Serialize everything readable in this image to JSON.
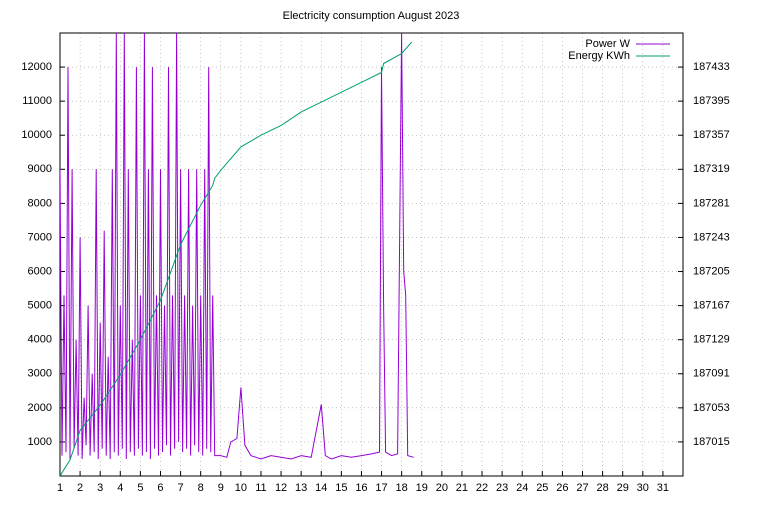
{
  "chart_data": {
    "type": "line",
    "title": "Electricity consumption August 2023",
    "xlim": [
      1,
      32
    ],
    "xticks": [
      1,
      2,
      3,
      4,
      5,
      6,
      7,
      8,
      9,
      10,
      11,
      12,
      13,
      14,
      15,
      16,
      17,
      18,
      19,
      20,
      21,
      22,
      23,
      24,
      25,
      26,
      27,
      28,
      29,
      30,
      31
    ],
    "ylim": [
      0,
      13000
    ],
    "yticks": [
      1000,
      2000,
      3000,
      4000,
      5000,
      6000,
      7000,
      8000,
      9000,
      10000,
      11000,
      12000
    ],
    "y2lim": [
      186977,
      187471
    ],
    "y2ticks": [
      187015,
      187053,
      187091,
      187129,
      187167,
      187205,
      187243,
      187281,
      187319,
      187357,
      187395,
      187433
    ],
    "grid": true,
    "legend": "top-right",
    "series": [
      {
        "name": "Power W",
        "color": "#9400d3",
        "x": [
          1.0,
          1.1,
          1.2,
          1.3,
          1.4,
          1.5,
          1.6,
          1.7,
          1.8,
          1.9,
          2.0,
          2.1,
          2.2,
          2.3,
          2.4,
          2.5,
          2.6,
          2.7,
          2.8,
          2.9,
          3.0,
          3.1,
          3.2,
          3.3,
          3.4,
          3.5,
          3.6,
          3.7,
          3.8,
          3.9,
          4.0,
          4.1,
          4.2,
          4.3,
          4.4,
          4.5,
          4.6,
          4.7,
          4.8,
          4.9,
          5.0,
          5.1,
          5.2,
          5.3,
          5.4,
          5.5,
          5.6,
          5.7,
          5.8,
          5.9,
          6.0,
          6.1,
          6.2,
          6.3,
          6.4,
          6.5,
          6.6,
          6.7,
          6.8,
          6.9,
          7.0,
          7.1,
          7.2,
          7.3,
          7.4,
          7.5,
          7.6,
          7.7,
          7.8,
          7.9,
          8.0,
          8.1,
          8.2,
          8.3,
          8.4,
          8.5,
          8.6,
          8.7,
          9.0,
          9.3,
          9.5,
          9.8,
          10.0,
          10.2,
          10.5,
          11.0,
          11.5,
          12.0,
          12.5,
          13.0,
          13.5,
          14.0,
          14.2,
          14.5,
          15.0,
          15.5,
          16.0,
          16.5,
          16.9,
          17.0,
          17.1,
          17.2,
          17.5,
          17.8,
          18.0,
          18.1,
          18.2,
          18.3,
          18.6
        ],
        "values": [
          9000,
          600,
          5300,
          700,
          12000,
          500,
          9000,
          800,
          4000,
          600,
          7000,
          500,
          2300,
          900,
          5000,
          600,
          3000,
          700,
          9000,
          500,
          4500,
          800,
          7200,
          600,
          3500,
          500,
          9000,
          700,
          13000,
          600,
          5000,
          800,
          13000,
          500,
          9000,
          700,
          4000,
          600,
          12000,
          800,
          5300,
          600,
          13000,
          700,
          9000,
          500,
          12000,
          800,
          5300,
          600,
          9000,
          700,
          5000,
          900,
          12000,
          600,
          5300,
          800,
          13000,
          1000,
          9000,
          700,
          5300,
          800,
          9000,
          600,
          5000,
          900,
          9000,
          700,
          5300,
          600,
          9000,
          800,
          12000,
          700,
          5300,
          600,
          600,
          550,
          1000,
          1100,
          2600,
          900,
          600,
          500,
          600,
          550,
          500,
          600,
          550,
          2100,
          600,
          500,
          600,
          550,
          600,
          650,
          700,
          12000,
          5000,
          700,
          600,
          650,
          13000,
          6000,
          5300,
          600,
          550
        ]
      },
      {
        "name": "Energy KWh",
        "color": "#009e73",
        "axis": "y2",
        "x": [
          1.0,
          1.5,
          2,
          3,
          4,
          5,
          6,
          7,
          8,
          8.6,
          8.7,
          9,
          10,
          11,
          12,
          13,
          14,
          15,
          16,
          17,
          17.1,
          18,
          18.5
        ],
        "values": [
          186977,
          186995,
          187028,
          187056,
          187090,
          187129,
          187173,
          187235,
          187279,
          187301,
          187309,
          187318,
          187344,
          187357,
          187368,
          187383,
          187394,
          187405,
          187416,
          187427,
          187437,
          187448,
          187461
        ]
      }
    ]
  }
}
